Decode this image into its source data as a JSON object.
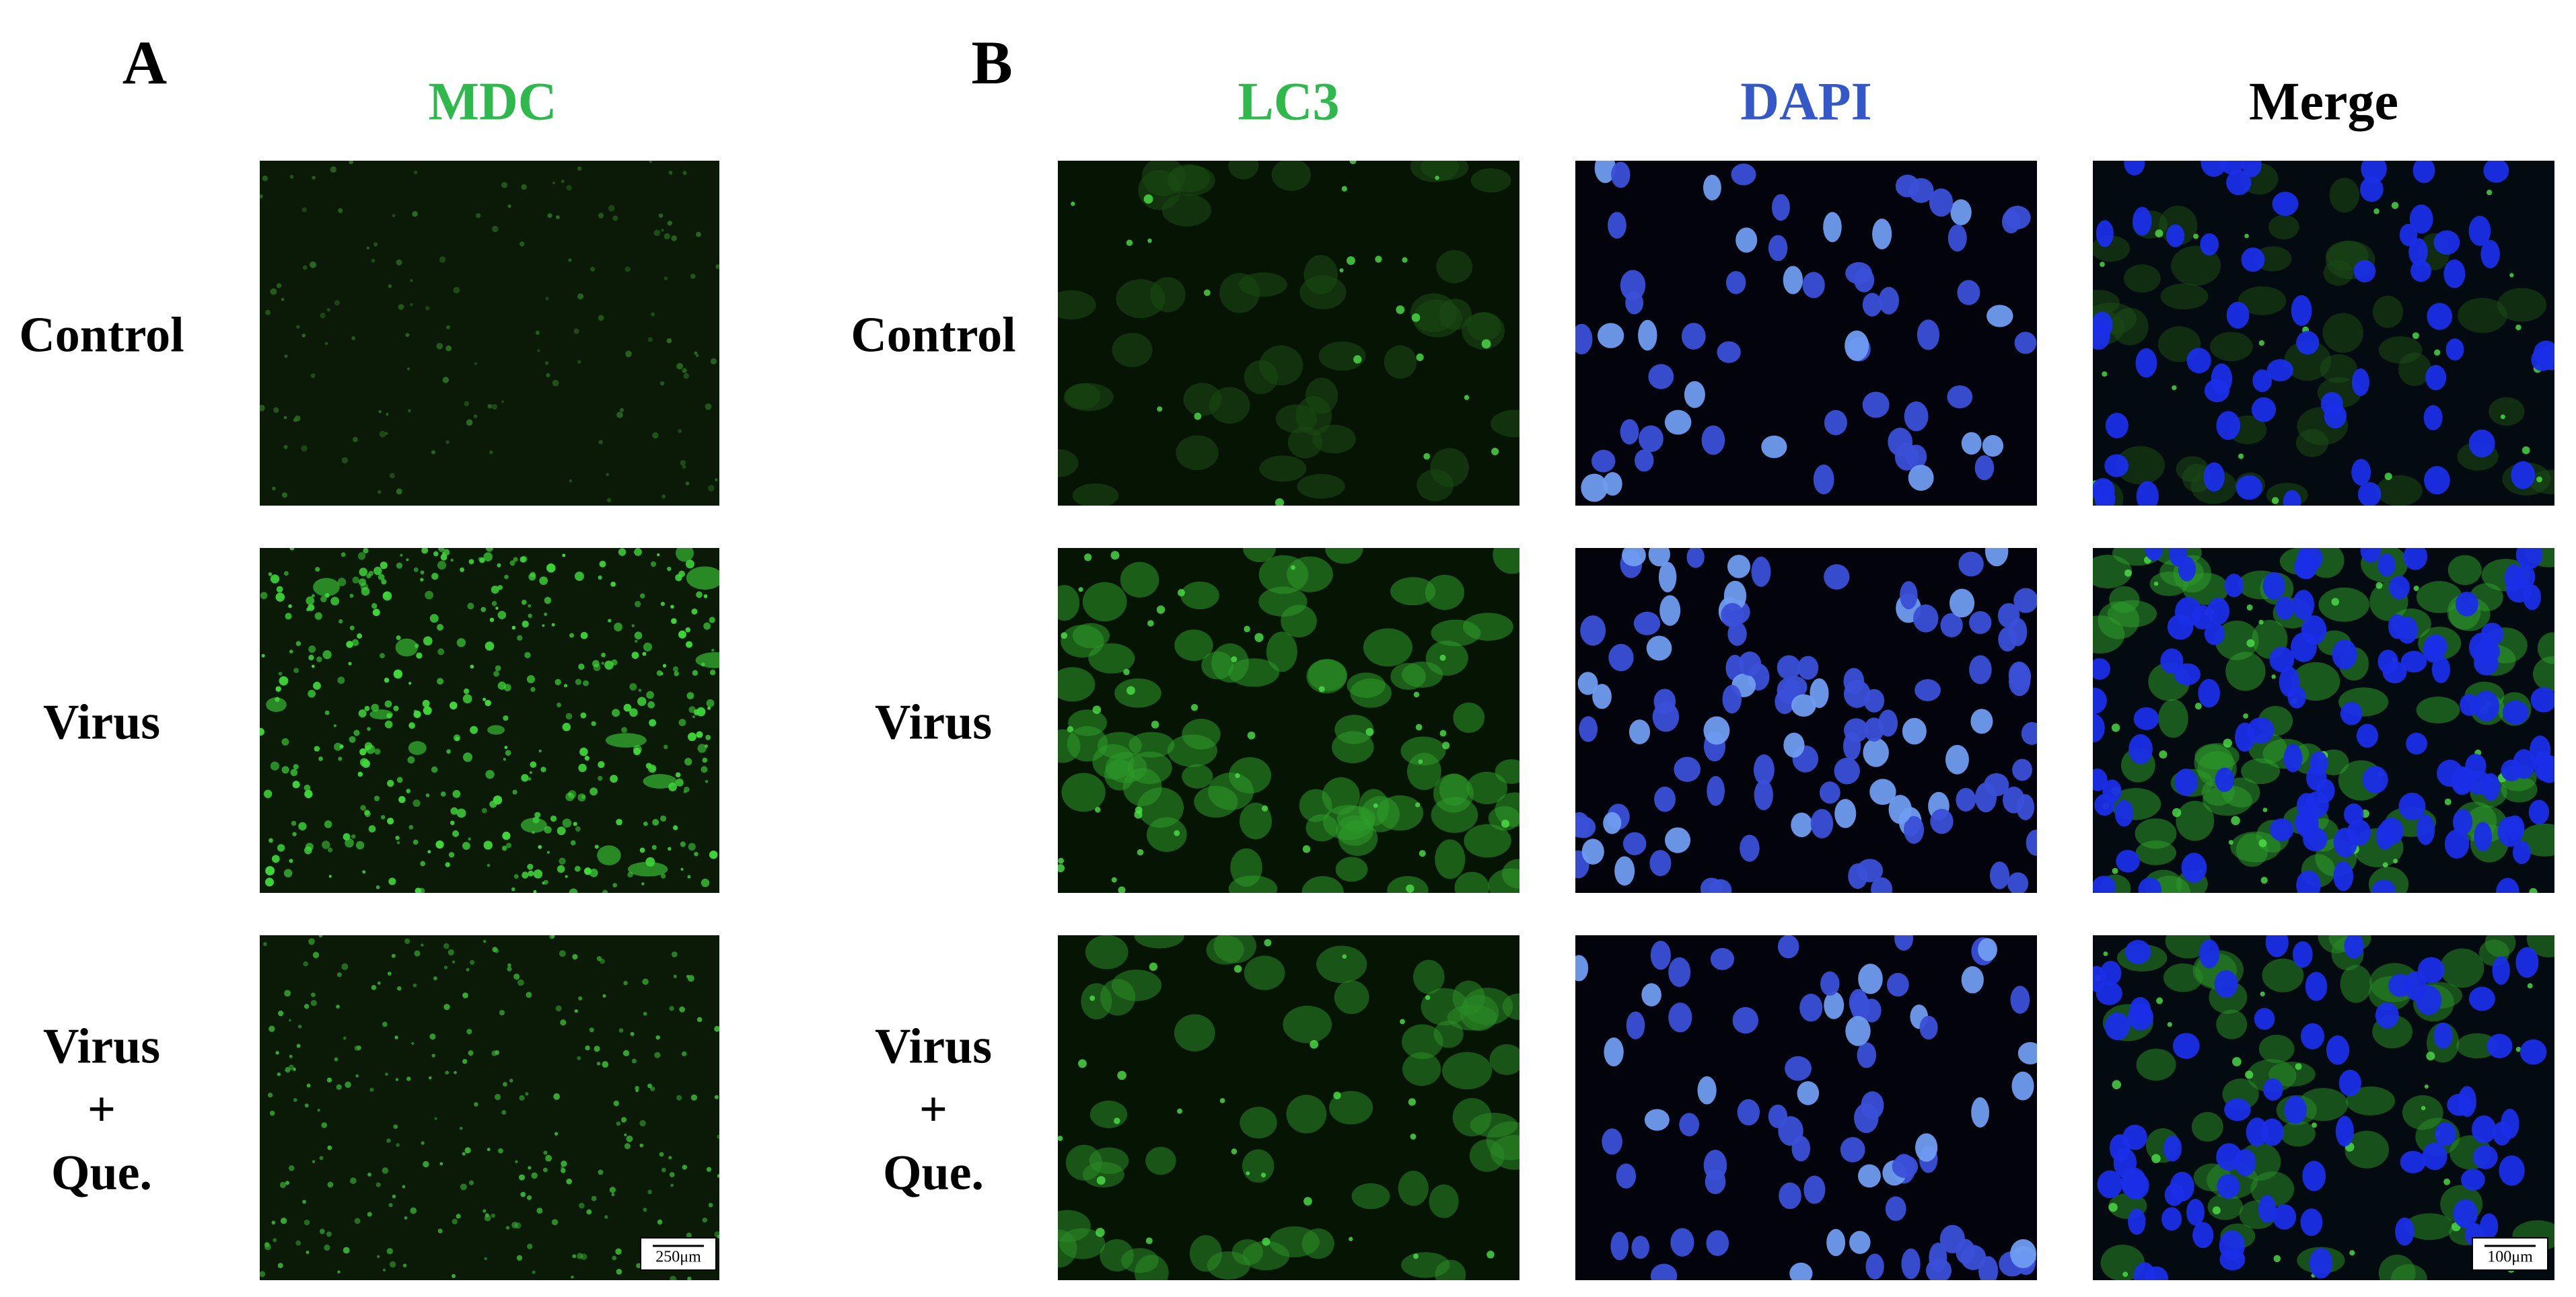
{
  "panel_a": {
    "label": "A",
    "columns": [
      "MDC"
    ],
    "rows": [
      [
        "Control"
      ],
      [
        "Virus"
      ],
      [
        "Virus",
        "+",
        "Que."
      ]
    ],
    "scale_bar": "250μm"
  },
  "panel_b": {
    "label": "B",
    "columns": [
      "LC3",
      "DAPI",
      "Merge"
    ],
    "rows": [
      [
        "Control"
      ],
      [
        "Virus"
      ],
      [
        "Virus",
        "+",
        "Que."
      ]
    ],
    "scale_bar": "100μm"
  }
}
